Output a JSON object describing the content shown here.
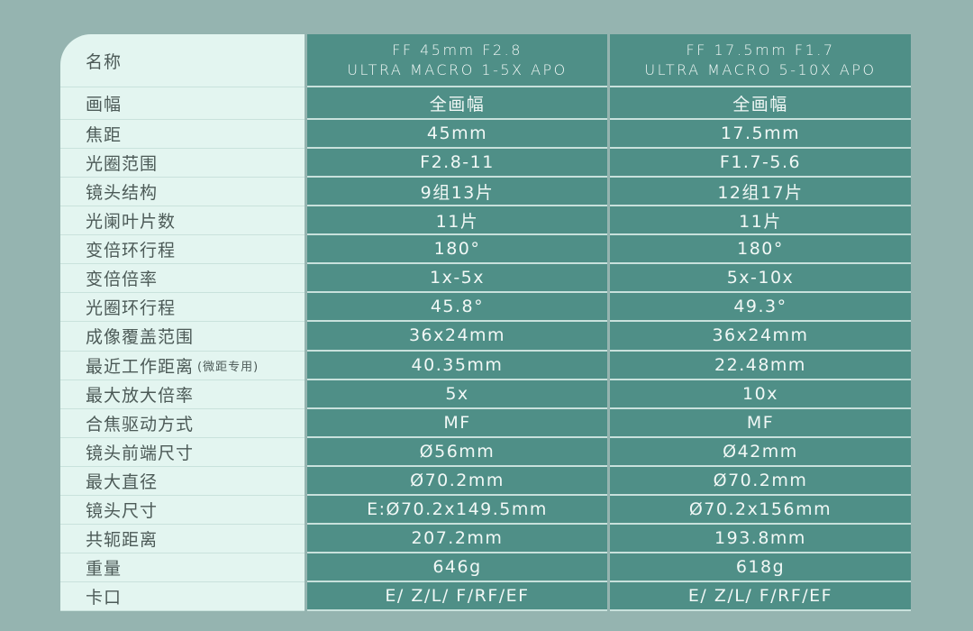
{
  "header": {
    "label": "名称",
    "lens1": {
      "line1": "FF 45mm F2.8",
      "line2": "ULTRA MACRO 1-5X APO"
    },
    "lens2": {
      "line1": "FF 17.5mm F1.7",
      "line2": "ULTRA MACRO 5-10X APO"
    }
  },
  "rows": [
    {
      "label": "画幅",
      "v1": "全画幅",
      "v2": "全画幅"
    },
    {
      "label": "焦距",
      "v1": "45mm",
      "v2": "17.5mm"
    },
    {
      "label": "光圈范围",
      "v1": "F2.8-11",
      "v2": "F1.7-5.6"
    },
    {
      "label": "镜头结构",
      "v1": "9组13片",
      "v2": "12组17片"
    },
    {
      "label": "光阑叶片数",
      "v1": "11片",
      "v2": "11片"
    },
    {
      "label": "变倍环行程",
      "v1": "180°",
      "v2": "180°"
    },
    {
      "label": "变倍倍率",
      "v1": "1x-5x",
      "v2": "5x-10x"
    },
    {
      "label": "光圈环行程",
      "v1": "45.8°",
      "v2": "49.3°"
    },
    {
      "label": "成像覆盖范围",
      "v1": "36x24mm",
      "v2": "36x24mm"
    },
    {
      "label": "最近工作距离",
      "note": "(微距专用)",
      "v1": "40.35mm",
      "v2": "22.48mm"
    },
    {
      "label": "最大放大倍率",
      "v1": "5x",
      "v2": "10x"
    },
    {
      "label": "合焦驱动方式",
      "v1": "MF",
      "v2": "MF"
    },
    {
      "label": "镜头前端尺寸",
      "v1": "Ø56mm",
      "v2": "Ø42mm"
    },
    {
      "label": "最大直径",
      "v1": "Ø70.2mm",
      "v2": "Ø70.2mm"
    },
    {
      "label": "镜头尺寸",
      "v1": "E:Ø70.2x149.5mm",
      "v2": "Ø70.2x156mm"
    },
    {
      "label": "共轭距离",
      "v1": "207.2mm",
      "v2": "193.8mm"
    },
    {
      "label": "重量",
      "v1": "646g",
      "v2": "618g"
    },
    {
      "label": "卡口",
      "v1": "E/ Z/L/ F/RF/EF",
      "v2": "E/ Z/L/ F/RF/EF"
    }
  ]
}
